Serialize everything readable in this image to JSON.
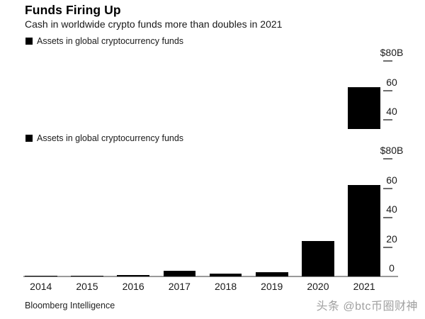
{
  "header": {
    "title": "Funds Firing Up",
    "subtitle": "Cash in worldwide crypto funds more than doubles in 2021"
  },
  "legend": {
    "label": "Assets in global cryptocurrency funds"
  },
  "footer": {
    "source": "Bloomberg Intelligence",
    "watermark": "头条 @btc币圈财神"
  },
  "chart_data": {
    "type": "bar",
    "title": "Funds Firing Up",
    "subtitle": "Cash in worldwide crypto funds more than doubles in 2021",
    "legend_entries": [
      "Assets in global cryptocurrency funds"
    ],
    "categories": [
      "2014",
      "2015",
      "2016",
      "2017",
      "2018",
      "2019",
      "2020",
      "2021"
    ],
    "values": [
      0.5,
      0.5,
      1,
      4,
      2,
      3,
      24,
      62
    ],
    "unit": "USD billions",
    "ylim": [
      0,
      80
    ],
    "yticks": [
      0,
      20,
      40,
      60,
      80
    ],
    "ytick_labels": [
      "0",
      "20",
      "40",
      "60",
      "$80B"
    ],
    "axis_side": "right",
    "grid": false,
    "bar_color": "#000000",
    "source": "Bloomberg Intelligence",
    "views": [
      "top copy vertically cropped below the 40 tick (only 2021 bar visible)",
      "full chart"
    ]
  }
}
